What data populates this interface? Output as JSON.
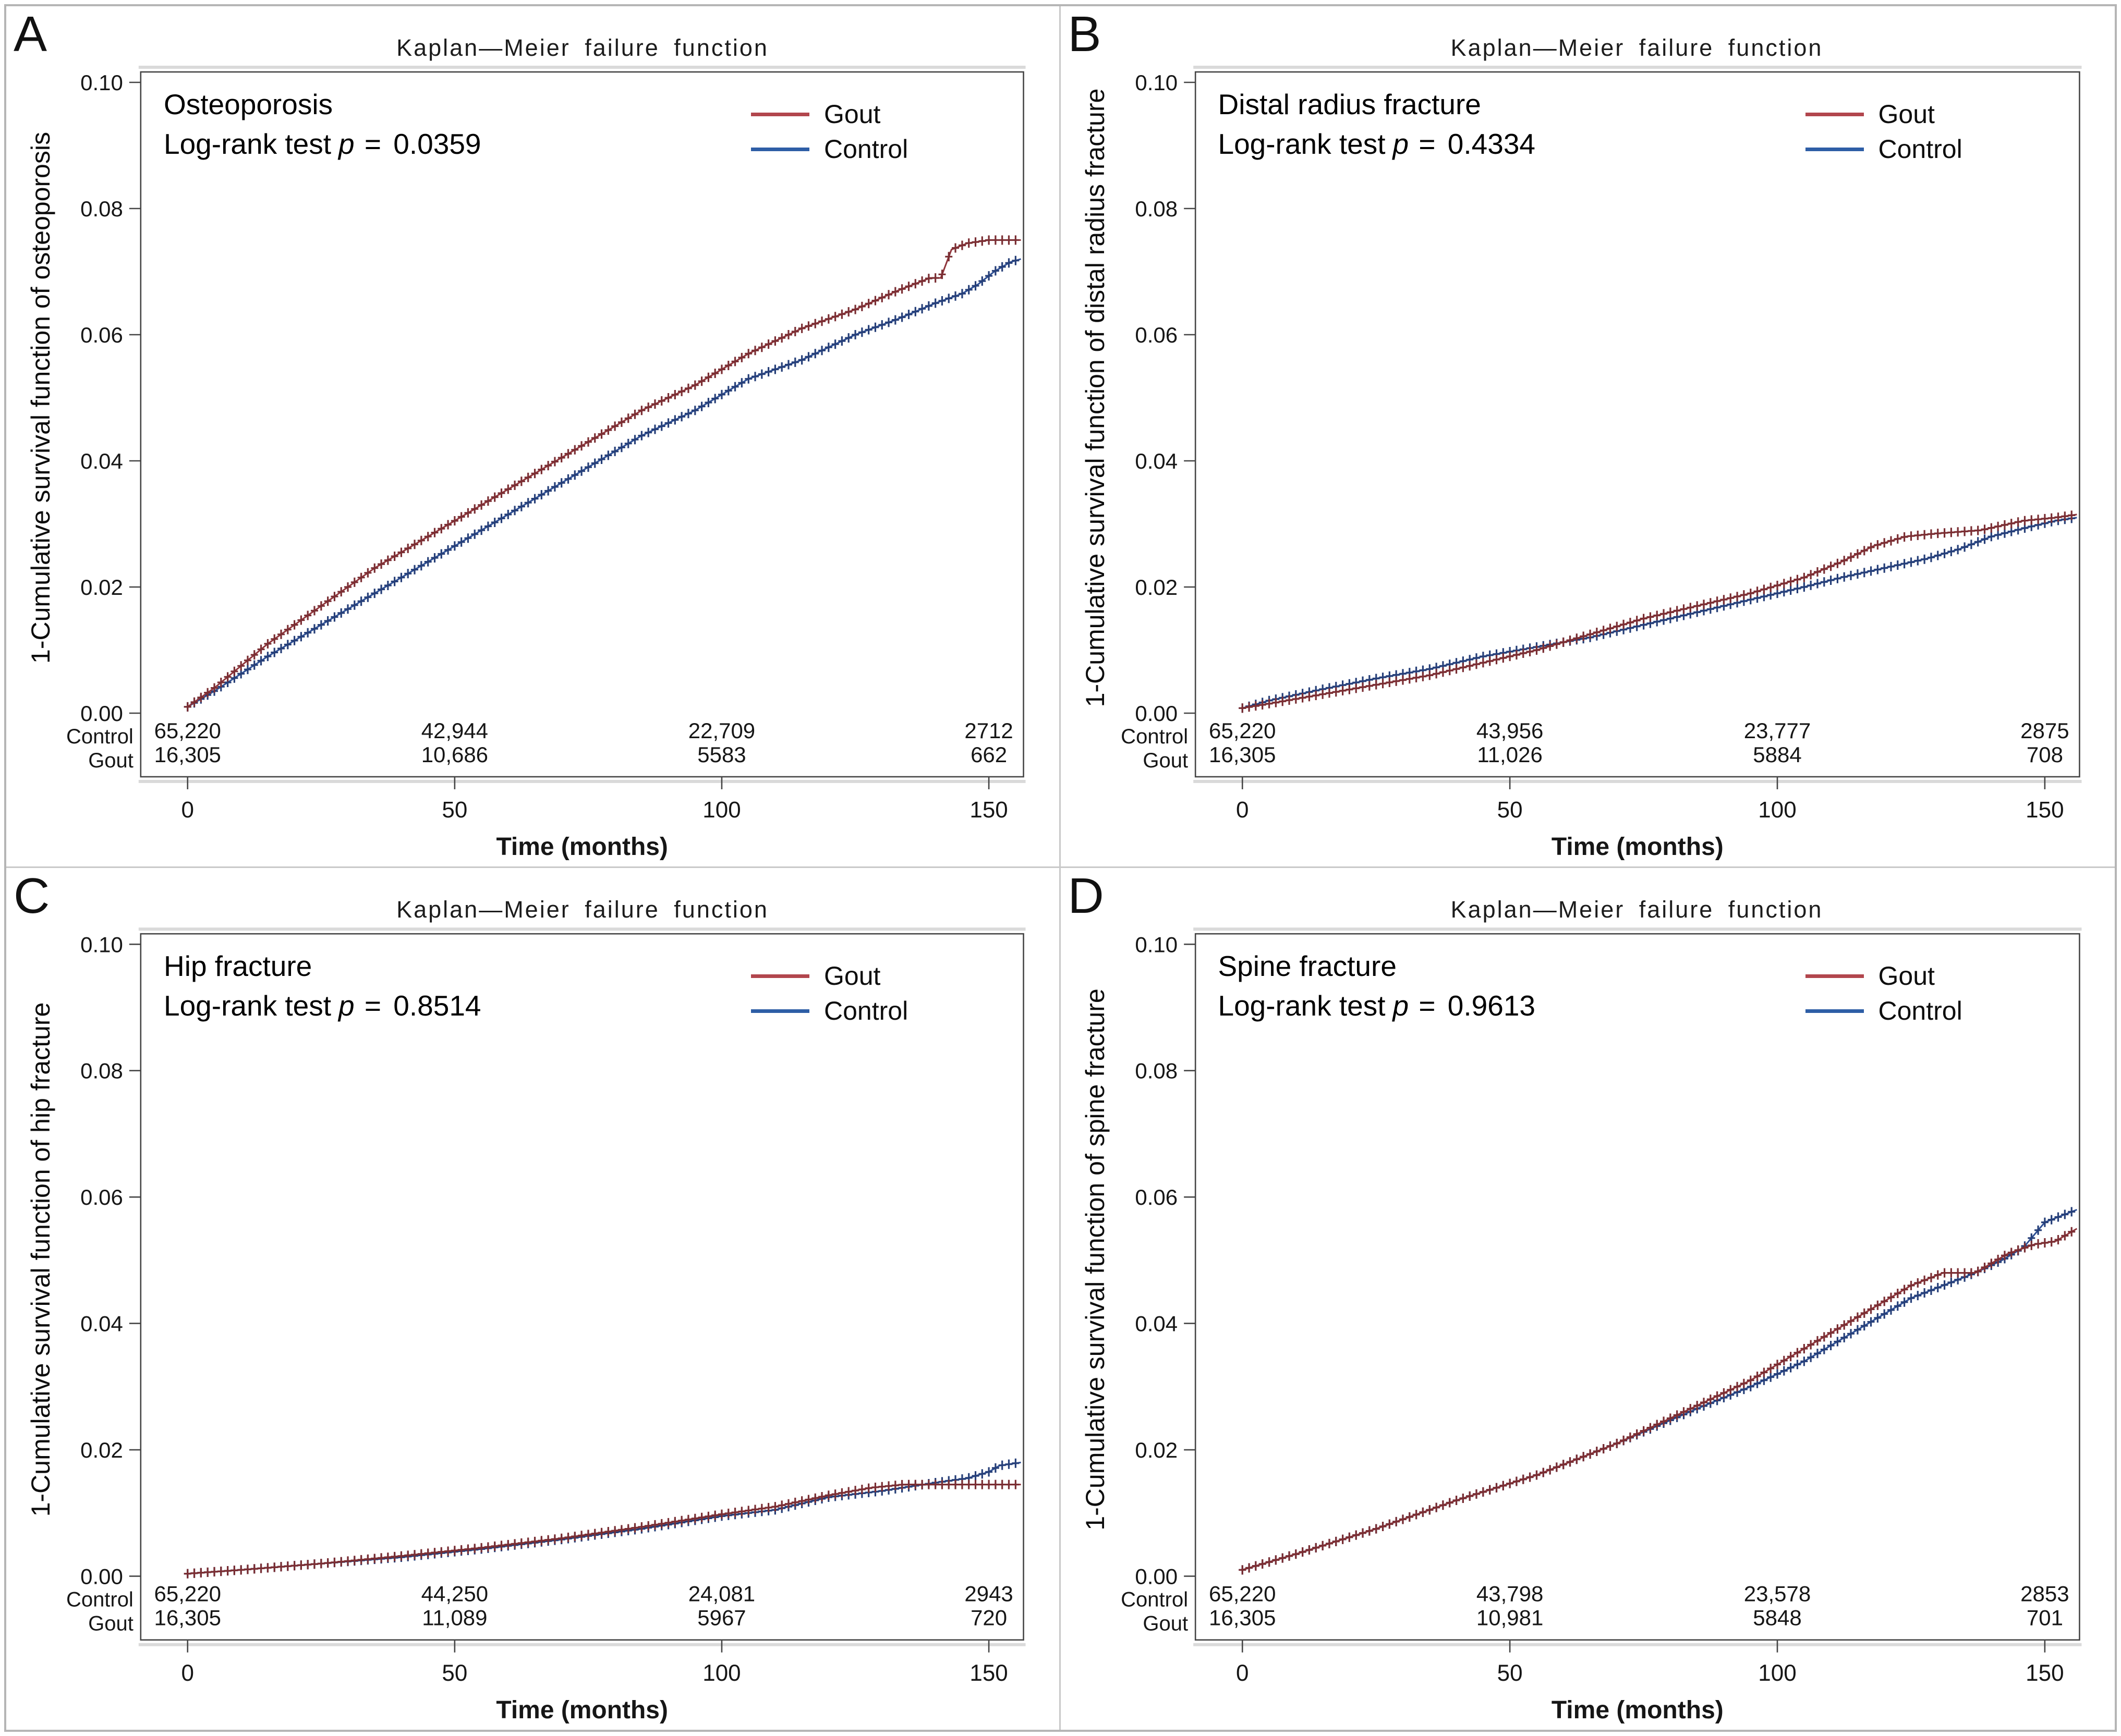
{
  "figure": {
    "p_symbol": "p",
    "equals": " = ",
    "background": "#ffffff",
    "frame_color": "#b5b5b5",
    "axis_color": "#454545",
    "legend": [
      {
        "label": "Gout",
        "color": "#b2464d"
      },
      {
        "label": "Control",
        "color": "#2e5ea6"
      }
    ]
  },
  "chart_data": [
    {
      "type": "line",
      "panel": "A",
      "title": "Kaplan—Meier failure function",
      "label": "Osteoporosis",
      "stat_prefix": "Log-rank test",
      "p_value": "0.0359",
      "xlabel": "Time (months)",
      "ylabel": "1-Cumulative survival function of osteoporosis",
      "xlim": [
        0,
        156
      ],
      "ylim": [
        0,
        0.1
      ],
      "x_ticks": [
        "0",
        "50",
        "100",
        "150"
      ],
      "y_ticks": [
        "0.00",
        "0.02",
        "0.04",
        "0.06",
        "0.08",
        "0.10"
      ],
      "legend_position": "top-right",
      "grid": false,
      "series": [
        {
          "name": "Control",
          "line_color": "#2e4f94",
          "mark_color": "#263f78",
          "points": [
            [
              0,
              0.001
            ],
            [
              5,
              0.0035
            ],
            [
              15,
              0.009
            ],
            [
              25,
              0.014
            ],
            [
              35,
              0.019
            ],
            [
              45,
              0.024
            ],
            [
              55,
              0.029
            ],
            [
              65,
              0.034
            ],
            [
              75,
              0.039
            ],
            [
              85,
              0.044
            ],
            [
              95,
              0.048
            ],
            [
              105,
              0.053
            ],
            [
              115,
              0.056
            ],
            [
              125,
              0.06
            ],
            [
              133,
              0.0625
            ],
            [
              140,
              0.065
            ],
            [
              145,
              0.0665
            ],
            [
              148,
              0.068
            ],
            [
              151,
              0.07
            ],
            [
              154,
              0.0715
            ],
            [
              156,
              0.072
            ]
          ]
        },
        {
          "name": "Gout",
          "line_color": "#8f353b",
          "mark_color": "#7a2e33",
          "points": [
            [
              0,
              0.001
            ],
            [
              5,
              0.004
            ],
            [
              15,
              0.011
            ],
            [
              25,
              0.017
            ],
            [
              35,
              0.023
            ],
            [
              45,
              0.028
            ],
            [
              55,
              0.033
            ],
            [
              65,
              0.038
            ],
            [
              75,
              0.043
            ],
            [
              85,
              0.048
            ],
            [
              95,
              0.052
            ],
            [
              105,
              0.057
            ],
            [
              115,
              0.061
            ],
            [
              125,
              0.064
            ],
            [
              133,
              0.067
            ],
            [
              139,
              0.069
            ],
            [
              141,
              0.069
            ],
            [
              143,
              0.0735
            ],
            [
              146,
              0.0745
            ],
            [
              150,
              0.075
            ],
            [
              156,
              0.075
            ]
          ]
        }
      ],
      "at_risk": {
        "row_labels": [
          "Control",
          "Gout"
        ],
        "times": [
          0,
          50,
          100,
          150
        ],
        "values": [
          [
            "65,220",
            "42,944",
            "22,709",
            "2712"
          ],
          [
            "16,305",
            "10,686",
            "5583",
            "662"
          ]
        ]
      }
    },
    {
      "type": "line",
      "panel": "B",
      "title": "Kaplan—Meier failure function",
      "label": "Distal radius fracture",
      "stat_prefix": "Log-rank test",
      "p_value": "0.4334",
      "xlabel": "Time (months)",
      "ylabel": "1-Cumulative survival function of distal radius fracture",
      "xlim": [
        0,
        156
      ],
      "ylim": [
        0,
        0.1
      ],
      "x_ticks": [
        "0",
        "50",
        "100",
        "150"
      ],
      "y_ticks": [
        "0.00",
        "0.02",
        "0.04",
        "0.06",
        "0.08",
        "0.10"
      ],
      "legend_position": "top-right",
      "grid": false,
      "series": [
        {
          "name": "Control",
          "line_color": "#2e4f94",
          "mark_color": "#263f78",
          "points": [
            [
              0,
              0.0008
            ],
            [
              5,
              0.002
            ],
            [
              15,
              0.0038
            ],
            [
              25,
              0.0055
            ],
            [
              35,
              0.007
            ],
            [
              45,
              0.009
            ],
            [
              55,
              0.0105
            ],
            [
              65,
              0.012
            ],
            [
              75,
              0.014
            ],
            [
              85,
              0.016
            ],
            [
              95,
              0.018
            ],
            [
              105,
              0.02
            ],
            [
              112,
              0.0215
            ],
            [
              120,
              0.023
            ],
            [
              128,
              0.0245
            ],
            [
              134,
              0.026
            ],
            [
              140,
              0.028
            ],
            [
              147,
              0.0295
            ],
            [
              152,
              0.0305
            ],
            [
              156,
              0.031
            ]
          ]
        },
        {
          "name": "Gout",
          "line_color": "#8f353b",
          "mark_color": "#7a2e33",
          "points": [
            [
              0,
              0.0008
            ],
            [
              5,
              0.0015
            ],
            [
              15,
              0.003
            ],
            [
              25,
              0.0045
            ],
            [
              35,
              0.006
            ],
            [
              45,
              0.008
            ],
            [
              55,
              0.01
            ],
            [
              65,
              0.0125
            ],
            [
              75,
              0.015
            ],
            [
              85,
              0.017
            ],
            [
              95,
              0.019
            ],
            [
              105,
              0.0215
            ],
            [
              112,
              0.024
            ],
            [
              118,
              0.0265
            ],
            [
              124,
              0.028
            ],
            [
              130,
              0.0285
            ],
            [
              138,
              0.029
            ],
            [
              146,
              0.0305
            ],
            [
              152,
              0.031
            ],
            [
              156,
              0.0315
            ]
          ]
        }
      ],
      "at_risk": {
        "row_labels": [
          "Control",
          "Gout"
        ],
        "times": [
          0,
          50,
          100,
          150
        ],
        "values": [
          [
            "65,220",
            "43,956",
            "23,777",
            "2875"
          ],
          [
            "16,305",
            "11,026",
            "5884",
            "708"
          ]
        ]
      }
    },
    {
      "type": "line",
      "panel": "C",
      "title": "Kaplan—Meier failure function",
      "label": "Hip fracture",
      "stat_prefix": "Log-rank test",
      "p_value": "0.8514",
      "xlabel": "Time (months)",
      "ylabel": "1-Cumulative survival function of hip fracture",
      "xlim": [
        0,
        156
      ],
      "ylim": [
        0,
        0.1
      ],
      "x_ticks": [
        "0",
        "50",
        "100",
        "150"
      ],
      "y_ticks": [
        "0.00",
        "0.02",
        "0.04",
        "0.06",
        "0.08",
        "0.10"
      ],
      "legend_position": "top-right",
      "grid": false,
      "series": [
        {
          "name": "Control",
          "line_color": "#2e4f94",
          "mark_color": "#263f78",
          "points": [
            [
              0,
              0.0004
            ],
            [
              10,
              0.001
            ],
            [
              25,
              0.002
            ],
            [
              40,
              0.003
            ],
            [
              55,
              0.0043
            ],
            [
              70,
              0.0058
            ],
            [
              85,
              0.0075
            ],
            [
              100,
              0.0095
            ],
            [
              110,
              0.0105
            ],
            [
              120,
              0.0125
            ],
            [
              130,
              0.0135
            ],
            [
              140,
              0.0148
            ],
            [
              146,
              0.0155
            ],
            [
              150,
              0.0165
            ],
            [
              152,
              0.0175
            ],
            [
              156,
              0.018
            ]
          ]
        },
        {
          "name": "Gout",
          "line_color": "#8f353b",
          "mark_color": "#7a2e33",
          "points": [
            [
              0,
              0.0004
            ],
            [
              10,
              0.001
            ],
            [
              25,
              0.002
            ],
            [
              40,
              0.0032
            ],
            [
              55,
              0.0045
            ],
            [
              70,
              0.006
            ],
            [
              85,
              0.0078
            ],
            [
              100,
              0.0098
            ],
            [
              110,
              0.011
            ],
            [
              120,
              0.0128
            ],
            [
              128,
              0.014
            ],
            [
              134,
              0.0145
            ],
            [
              156,
              0.0145
            ]
          ]
        }
      ],
      "at_risk": {
        "row_labels": [
          "Control",
          "Gout"
        ],
        "times": [
          0,
          50,
          100,
          150
        ],
        "values": [
          [
            "65,220",
            "44,250",
            "24,081",
            "2943"
          ],
          [
            "16,305",
            "11,089",
            "5967",
            "720"
          ]
        ]
      }
    },
    {
      "type": "line",
      "panel": "D",
      "title": "Kaplan—Meier failure function",
      "label": "Spine fracture",
      "stat_prefix": "Log-rank test",
      "p_value": "0.9613",
      "xlabel": "Time (months)",
      "ylabel": "1-Cumulative survival function of spine fracture",
      "xlim": [
        0,
        156
      ],
      "ylim": [
        0,
        0.1
      ],
      "x_ticks": [
        "0",
        "50",
        "100",
        "150"
      ],
      "y_ticks": [
        "0.00",
        "0.02",
        "0.04",
        "0.06",
        "0.08",
        "0.10"
      ],
      "legend_position": "top-right",
      "grid": false,
      "series": [
        {
          "name": "Control",
          "line_color": "#2e4f94",
          "mark_color": "#263f78",
          "points": [
            [
              0,
              0.001
            ],
            [
              10,
              0.0035
            ],
            [
              25,
              0.0075
            ],
            [
              40,
              0.012
            ],
            [
              55,
              0.016
            ],
            [
              70,
              0.021
            ],
            [
              85,
              0.0265
            ],
            [
              95,
              0.03
            ],
            [
              105,
              0.034
            ],
            [
              115,
              0.039
            ],
            [
              125,
              0.044
            ],
            [
              131,
              0.046
            ],
            [
              137,
              0.048
            ],
            [
              142,
              0.05
            ],
            [
              146,
              0.052
            ],
            [
              150,
              0.056
            ],
            [
              153,
              0.057
            ],
            [
              156,
              0.058
            ]
          ]
        },
        {
          "name": "Gout",
          "line_color": "#8f353b",
          "mark_color": "#7a2e33",
          "points": [
            [
              0,
              0.001
            ],
            [
              10,
              0.0035
            ],
            [
              25,
              0.0075
            ],
            [
              40,
              0.012
            ],
            [
              55,
              0.016
            ],
            [
              70,
              0.021
            ],
            [
              85,
              0.027
            ],
            [
              95,
              0.031
            ],
            [
              105,
              0.036
            ],
            [
              115,
              0.041
            ],
            [
              125,
              0.046
            ],
            [
              131,
              0.048
            ],
            [
              137,
              0.048
            ],
            [
              143,
              0.051
            ],
            [
              148,
              0.0525
            ],
            [
              152,
              0.053
            ],
            [
              156,
              0.055
            ]
          ]
        }
      ],
      "at_risk": {
        "row_labels": [
          "Control",
          "Gout"
        ],
        "times": [
          0,
          50,
          100,
          150
        ],
        "values": [
          [
            "65,220",
            "43,798",
            "23,578",
            "2853"
          ],
          [
            "16,305",
            "10,981",
            "5848",
            "701"
          ]
        ]
      }
    }
  ]
}
